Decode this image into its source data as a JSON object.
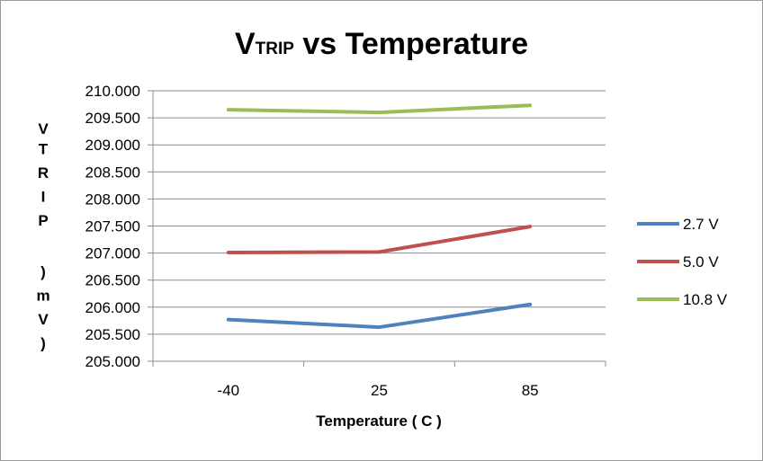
{
  "chart_data": {
    "type": "line",
    "title_prefix": "V",
    "title_sub": "TRIP",
    "title_rest": " vs Temperature",
    "xlabel": "Temperature ( C )",
    "ylabel_chars": [
      "V",
      "T",
      "R",
      "I",
      "P",
      "",
      ")",
      "m",
      "V",
      ")"
    ],
    "categories": [
      "-40",
      "25",
      "85"
    ],
    "ylim": [
      205.0,
      210.0
    ],
    "yticks": [
      "205.000",
      "205.500",
      "206.000",
      "206.500",
      "207.000",
      "207.500",
      "208.000",
      "208.500",
      "209.000",
      "209.500",
      "210.000"
    ],
    "grid": true,
    "legend_position": "right",
    "series": [
      {
        "name": "2.7 V",
        "color": "#4f81bd",
        "values": [
          205.77,
          205.63,
          206.05
        ]
      },
      {
        "name": "5.0 V",
        "color": "#c0504d",
        "values": [
          207.01,
          207.02,
          207.49
        ]
      },
      {
        "name": "10.8 V",
        "color": "#9bbb59",
        "values": [
          209.65,
          209.6,
          209.73
        ]
      }
    ]
  }
}
